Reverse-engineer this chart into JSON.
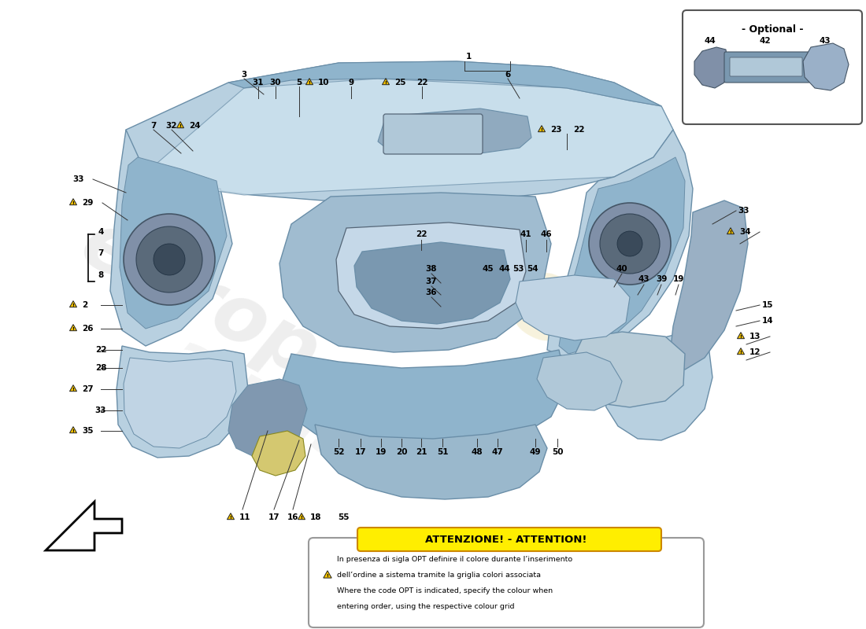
{
  "bg_color": "#ffffff",
  "fig_width": 11.0,
  "fig_height": 8.0,
  "attention_title": "ATTENZIONE! - ATTENTION!",
  "attention_line1": "In presenza di sigla OPT definire il colore durante l’inserimento",
  "attention_line2": "dell’ordine a sistema tramite la griglia colori associata",
  "attention_line3": "Where the code OPT is indicated, specify the colour when",
  "attention_line4": "entering order, using the respective colour grid",
  "optional_label": "- Optional -",
  "dash_color1": "#b8d0e0",
  "dash_color2": "#8fb4cc",
  "dash_color3": "#d0e4f0",
  "dash_dark": "#6a8ea8",
  "yellow_warn": "#f0c000",
  "warn_border": "#222222",
  "attention_yellow": "#ffee00",
  "attention_border": "#cc8800",
  "line_col": "#333333"
}
